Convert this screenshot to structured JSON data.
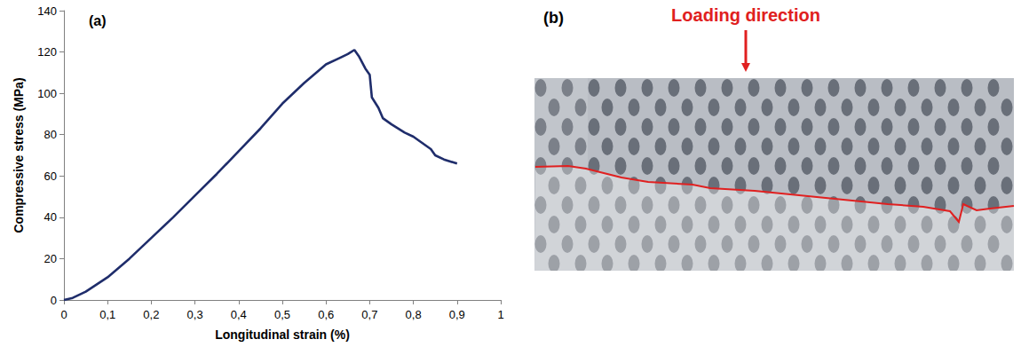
{
  "chart_data": {
    "type": "line",
    "label": "(a)",
    "x_label": "Longitudinal strain (%)",
    "y_label": "Compressive stress (MPa)",
    "x": [
      0,
      0.02,
      0.05,
      0.1,
      0.15,
      0.2,
      0.25,
      0.3,
      0.35,
      0.4,
      0.45,
      0.5,
      0.55,
      0.6,
      0.63,
      0.65,
      0.665,
      0.675,
      0.69,
      0.7,
      0.705,
      0.72,
      0.73,
      0.75,
      0.78,
      0.8,
      0.82,
      0.84,
      0.85,
      0.87,
      0.9
    ],
    "values": [
      0,
      1,
      4,
      11,
      20,
      30,
      40,
      50.5,
      61,
      72,
      83,
      95,
      105,
      114,
      117,
      119,
      121,
      118,
      112,
      109,
      98,
      93,
      88,
      85,
      81,
      79,
      76,
      73,
      70,
      68,
      66
    ],
    "color": "#1f2d6b",
    "marker": "none",
    "line_style": "solid",
    "grid": false,
    "xlim": [
      0,
      1
    ],
    "xticks": [
      0,
      {
        "value": 0.1,
        "label": "0,1"
      },
      {
        "value": 0.2,
        "label": "0,2"
      },
      {
        "value": 0.3,
        "label": "0,3"
      },
      {
        "value": 0.4,
        "label": "0,4"
      },
      {
        "value": 0.5,
        "label": "0,5"
      },
      {
        "value": 0.6,
        "label": "0,6"
      },
      {
        "value": 0.7,
        "label": "0,7"
      },
      {
        "value": 0.8,
        "label": "0,8"
      },
      {
        "value": 0.9,
        "label": "0,9"
      },
      1
    ],
    "ylim": [
      0,
      140
    ],
    "yticks": [
      0,
      20,
      40,
      60,
      80,
      100,
      120,
      140
    ]
  },
  "photo_panel": {
    "label": "(b)",
    "annotation": "Loading direction"
  }
}
